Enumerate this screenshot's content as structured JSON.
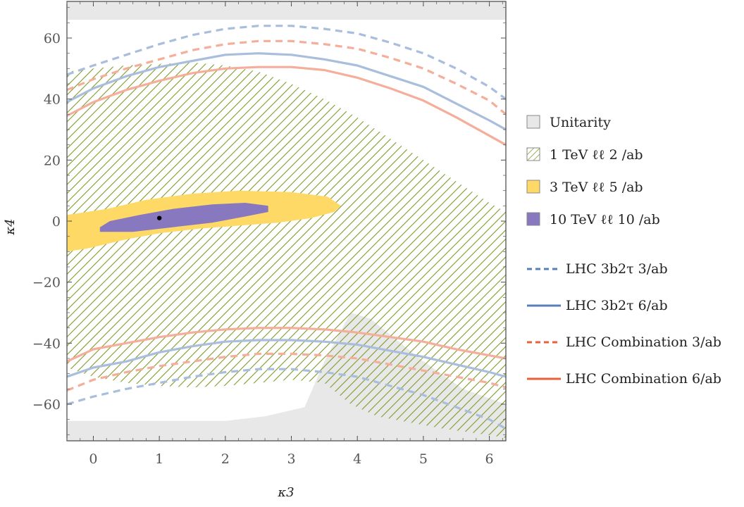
{
  "chart_data": {
    "type": "line",
    "xlabel": "κ3",
    "ylabel": "κ4",
    "xlim": [
      -0.4,
      6.25
    ],
    "ylim": [
      -72,
      72
    ],
    "x_ticks": [
      0,
      1,
      2,
      3,
      4,
      5,
      6
    ],
    "y_ticks": [
      -60,
      -40,
      -20,
      0,
      20,
      40,
      60
    ],
    "grid": false,
    "legend_placement": "right",
    "best_fit_point": {
      "x": 1,
      "y": 1
    },
    "regions": [
      {
        "name": "Unitarity",
        "style": "fill",
        "color": "#e8e8e8",
        "top_band": [
          [
            -0.4,
            66
          ],
          [
            6.25,
            66
          ],
          [
            6.25,
            72
          ],
          [
            -0.4,
            72
          ]
        ],
        "bottom_band": [
          [
            -0.4,
            -72
          ],
          [
            6.25,
            -72
          ],
          [
            6.25,
            -60
          ],
          [
            5.6,
            -55
          ],
          [
            5.0,
            -46
          ],
          [
            4.6,
            -39
          ],
          [
            4.2,
            -32
          ],
          [
            3.9,
            -30
          ],
          [
            3.5,
            -46
          ],
          [
            3.2,
            -61
          ],
          [
            2.6,
            -64
          ],
          [
            2.0,
            -65.5
          ],
          [
            -0.4,
            -65.5
          ]
        ]
      },
      {
        "name": "1 TeV ℓℓ 2 /ab",
        "style": "hatch",
        "color": "#7e9b2c",
        "upper": [
          [
            -0.4,
            49
          ],
          [
            0,
            50
          ],
          [
            0.5,
            51
          ],
          [
            1.0,
            51.5
          ],
          [
            1.5,
            52
          ],
          [
            2.0,
            51
          ],
          [
            2.5,
            49
          ],
          [
            3.0,
            45
          ],
          [
            3.5,
            40
          ],
          [
            4.0,
            34
          ],
          [
            4.5,
            27
          ],
          [
            5.0,
            20
          ],
          [
            5.5,
            13
          ],
          [
            6.0,
            6
          ],
          [
            6.25,
            3
          ]
        ],
        "lower": [
          [
            -0.4,
            -48
          ],
          [
            0,
            -51
          ],
          [
            0.5,
            -53
          ],
          [
            1.0,
            -54
          ],
          [
            1.5,
            -54.5
          ],
          [
            2.0,
            -54
          ],
          [
            2.5,
            -53
          ],
          [
            3.0,
            -52
          ],
          [
            3.5,
            -53
          ],
          [
            3.9,
            -60
          ],
          [
            4.3,
            -64
          ],
          [
            4.8,
            -66
          ],
          [
            5.3,
            -68
          ],
          [
            5.8,
            -69.5
          ],
          [
            6.25,
            -71
          ]
        ]
      },
      {
        "name": "3 TeV ℓℓ 5 /ab",
        "style": "fill",
        "color": "#ffd966",
        "outline": [
          [
            -0.4,
            -10
          ],
          [
            -0.1,
            -9
          ],
          [
            0.5,
            -6
          ],
          [
            1.0,
            -4
          ],
          [
            1.6,
            -2.5
          ],
          [
            2.2,
            -1.5
          ],
          [
            2.8,
            -0.5
          ],
          [
            3.3,
            1
          ],
          [
            3.65,
            3
          ],
          [
            3.75,
            5
          ],
          [
            3.55,
            8
          ],
          [
            3.0,
            9.5
          ],
          [
            2.2,
            10
          ],
          [
            1.5,
            9
          ],
          [
            0.8,
            7
          ],
          [
            0.2,
            4
          ],
          [
            -0.4,
            2
          ]
        ]
      },
      {
        "name": "10 TeV ℓℓ 10 /ab",
        "style": "fill",
        "color": "#8878c0",
        "outline": [
          [
            0.1,
            -3.5
          ],
          [
            0.6,
            -3.5
          ],
          [
            1.2,
            -2
          ],
          [
            1.8,
            -0.5
          ],
          [
            2.3,
            1.5
          ],
          [
            2.65,
            3
          ],
          [
            2.65,
            5
          ],
          [
            2.3,
            6
          ],
          [
            1.8,
            5.5
          ],
          [
            1.2,
            4
          ],
          [
            0.7,
            2
          ],
          [
            0.25,
            0
          ],
          [
            0.1,
            -2
          ]
        ]
      }
    ],
    "series": [
      {
        "name": "LHC 3b2τ 3/ab",
        "color": "#a9bedc",
        "dash": "dashed",
        "upper": {
          "x": [
            -0.4,
            0,
            0.5,
            1.0,
            1.5,
            2.0,
            2.5,
            3.0,
            3.5,
            4.0,
            4.5,
            5.0,
            5.5,
            6.0,
            6.25
          ],
          "y": [
            48,
            51,
            54.5,
            58,
            61,
            63,
            64,
            64,
            63,
            61.5,
            58.5,
            55,
            50,
            44,
            40
          ]
        },
        "lower": {
          "x": [
            -0.4,
            0,
            0.5,
            1.0,
            1.5,
            2.0,
            2.5,
            3.0,
            3.5,
            4.0,
            4.5,
            5.0,
            5.5,
            6.0,
            6.25
          ],
          "y": [
            -60,
            -57.5,
            -55,
            -53,
            -51,
            -49.5,
            -48.5,
            -48.5,
            -49.5,
            -51,
            -54,
            -57,
            -61,
            -65,
            -68
          ]
        }
      },
      {
        "name": "LHC 3b2τ 6/ab",
        "color": "#a9bedc",
        "dash": "solid",
        "upper": {
          "x": [
            -0.4,
            0,
            0.5,
            1.0,
            1.5,
            2.0,
            2.5,
            3.0,
            3.5,
            4.0,
            4.5,
            5.0,
            5.5,
            6.0,
            6.25
          ],
          "y": [
            39,
            43.5,
            47.5,
            50.5,
            52.5,
            54.5,
            55,
            54.5,
            53,
            51,
            47.5,
            44,
            38.5,
            33,
            30
          ]
        },
        "lower": {
          "x": [
            -0.4,
            0,
            0.5,
            1.0,
            1.5,
            2.0,
            2.5,
            3.0,
            3.5,
            4.0,
            4.5,
            5.0,
            5.5,
            6.0,
            6.25
          ],
          "y": [
            -51,
            -48,
            -46,
            -43,
            -41,
            -39.5,
            -39,
            -39,
            -39.5,
            -40.5,
            -42.5,
            -44.5,
            -47,
            -49.5,
            -51
          ]
        }
      },
      {
        "name": "LHC Combination 3/ab",
        "color": "#f4ae9a",
        "dash": "dashed",
        "upper": {
          "x": [
            -0.4,
            0,
            0.5,
            1.0,
            1.5,
            2.0,
            2.5,
            3.0,
            3.5,
            4.0,
            4.5,
            5.0,
            5.5,
            6.0,
            6.25
          ],
          "y": [
            43,
            46.5,
            50,
            53,
            56,
            58,
            59,
            59,
            58,
            56.5,
            53.5,
            50,
            45,
            39.5,
            35
          ]
        },
        "lower": {
          "x": [
            -0.4,
            0,
            0.5,
            1.0,
            1.5,
            2.0,
            2.5,
            3.0,
            3.5,
            4.0,
            4.5,
            5.0,
            5.5,
            6.0,
            6.25
          ],
          "y": [
            -55.5,
            -52,
            -49.5,
            -47.5,
            -46,
            -44.5,
            -43.5,
            -43.5,
            -44,
            -45,
            -47,
            -49,
            -51,
            -53,
            -54.5
          ]
        }
      },
      {
        "name": "LHC Combination 6/ab",
        "color": "#f4ae9a",
        "dash": "solid",
        "upper": {
          "x": [
            -0.4,
            0,
            0.5,
            1.0,
            1.5,
            2.0,
            2.5,
            3.0,
            3.5,
            4.0,
            4.5,
            5.0,
            5.5,
            6.0,
            6.25
          ],
          "y": [
            34.5,
            39,
            43,
            46,
            48.5,
            50,
            50.5,
            50.5,
            49.5,
            47,
            43.5,
            39.5,
            34,
            28,
            25
          ]
        },
        "lower": {
          "x": [
            -0.4,
            0,
            0.5,
            1.0,
            1.5,
            2.0,
            2.5,
            3.0,
            3.5,
            4.0,
            4.5,
            5.0,
            5.5,
            6.0,
            6.25
          ],
          "y": [
            -46,
            -42,
            -40,
            -38,
            -36.5,
            -35.5,
            -35,
            -35,
            -35.5,
            -36.5,
            -38,
            -39.5,
            -42,
            -44,
            -45
          ]
        }
      }
    ],
    "legend": [
      {
        "label": "Unitarity",
        "kind": "swatch",
        "color": "#e8e8e8"
      },
      {
        "label": "1 TeV ℓℓ 2 /ab",
        "kind": "hatch",
        "color": "#7e9b2c"
      },
      {
        "label": "3 TeV ℓℓ 5 /ab",
        "kind": "swatch",
        "color": "#ffd966"
      },
      {
        "label": "10 TeV ℓℓ 10 /ab",
        "kind": "swatch",
        "color": "#8878c0"
      },
      {
        "label": "LHC 3b2τ 3/ab",
        "kind": "dashed",
        "color": "#5a7fb8"
      },
      {
        "label": "LHC 3b2τ 6/ab",
        "kind": "solid",
        "color": "#5a7fb8"
      },
      {
        "label": "LHC Combination 3/ab",
        "kind": "dashed",
        "color": "#e8603c"
      },
      {
        "label": "LHC Combination 6/ab",
        "kind": "solid",
        "color": "#e8603c"
      }
    ]
  }
}
